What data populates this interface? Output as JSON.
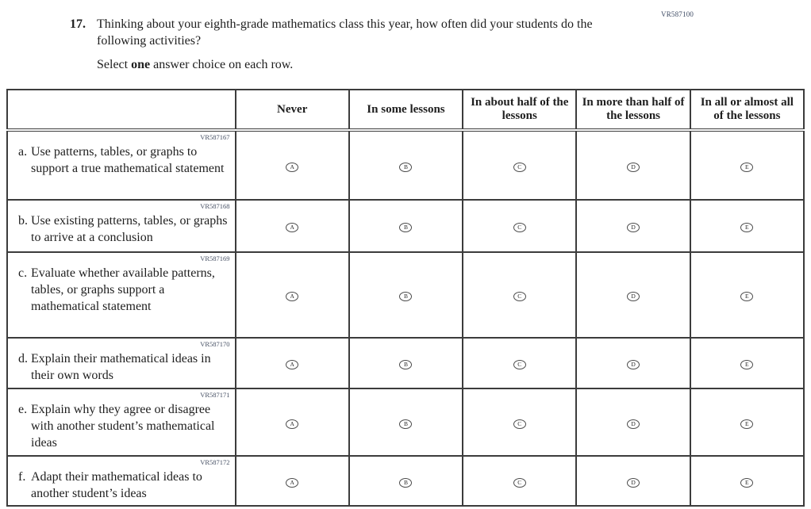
{
  "page": {
    "form_code": "VR587100"
  },
  "question": {
    "number": "17.",
    "text": "Thinking about your eighth-grade mathematics class this year, how often did your students do the following activities?",
    "instruction": {
      "prefix": "Select ",
      "bold": "one",
      "suffix": " answer choice on each row."
    }
  },
  "table": {
    "columns": [
      "Never",
      "In some lessons",
      "In about half of the lessons",
      "In more than half of the lessons",
      "In all or almost all of the lessons"
    ],
    "options": [
      "A",
      "B",
      "C",
      "D",
      "E"
    ],
    "rows": [
      {
        "code": "VR587167",
        "letter": "a.",
        "statement": "Use patterns, tables, or graphs to support a true mathematical statement"
      },
      {
        "code": "VR587168",
        "letter": "b.",
        "statement": "Use existing patterns, tables, or graphs to arrive at a conclusion"
      },
      {
        "code": "VR587169",
        "letter": "c.",
        "statement": "Evaluate whether available patterns, tables, or graphs support a mathematical statement"
      },
      {
        "code": "VR587170",
        "letter": "d.",
        "statement": "Explain their mathematical ideas in their own words"
      },
      {
        "code": "VR587171",
        "letter": "e.",
        "statement": "Explain why they agree or disagree with another student’s mathematical ideas"
      },
      {
        "code": "VR587172",
        "letter": "f.",
        "statement": "Adapt their mathematical ideas to another student’s ideas"
      }
    ]
  },
  "colors": {
    "text": "#1e1e1e",
    "border": "#3c3c3c",
    "code_text": "#454f63"
  }
}
